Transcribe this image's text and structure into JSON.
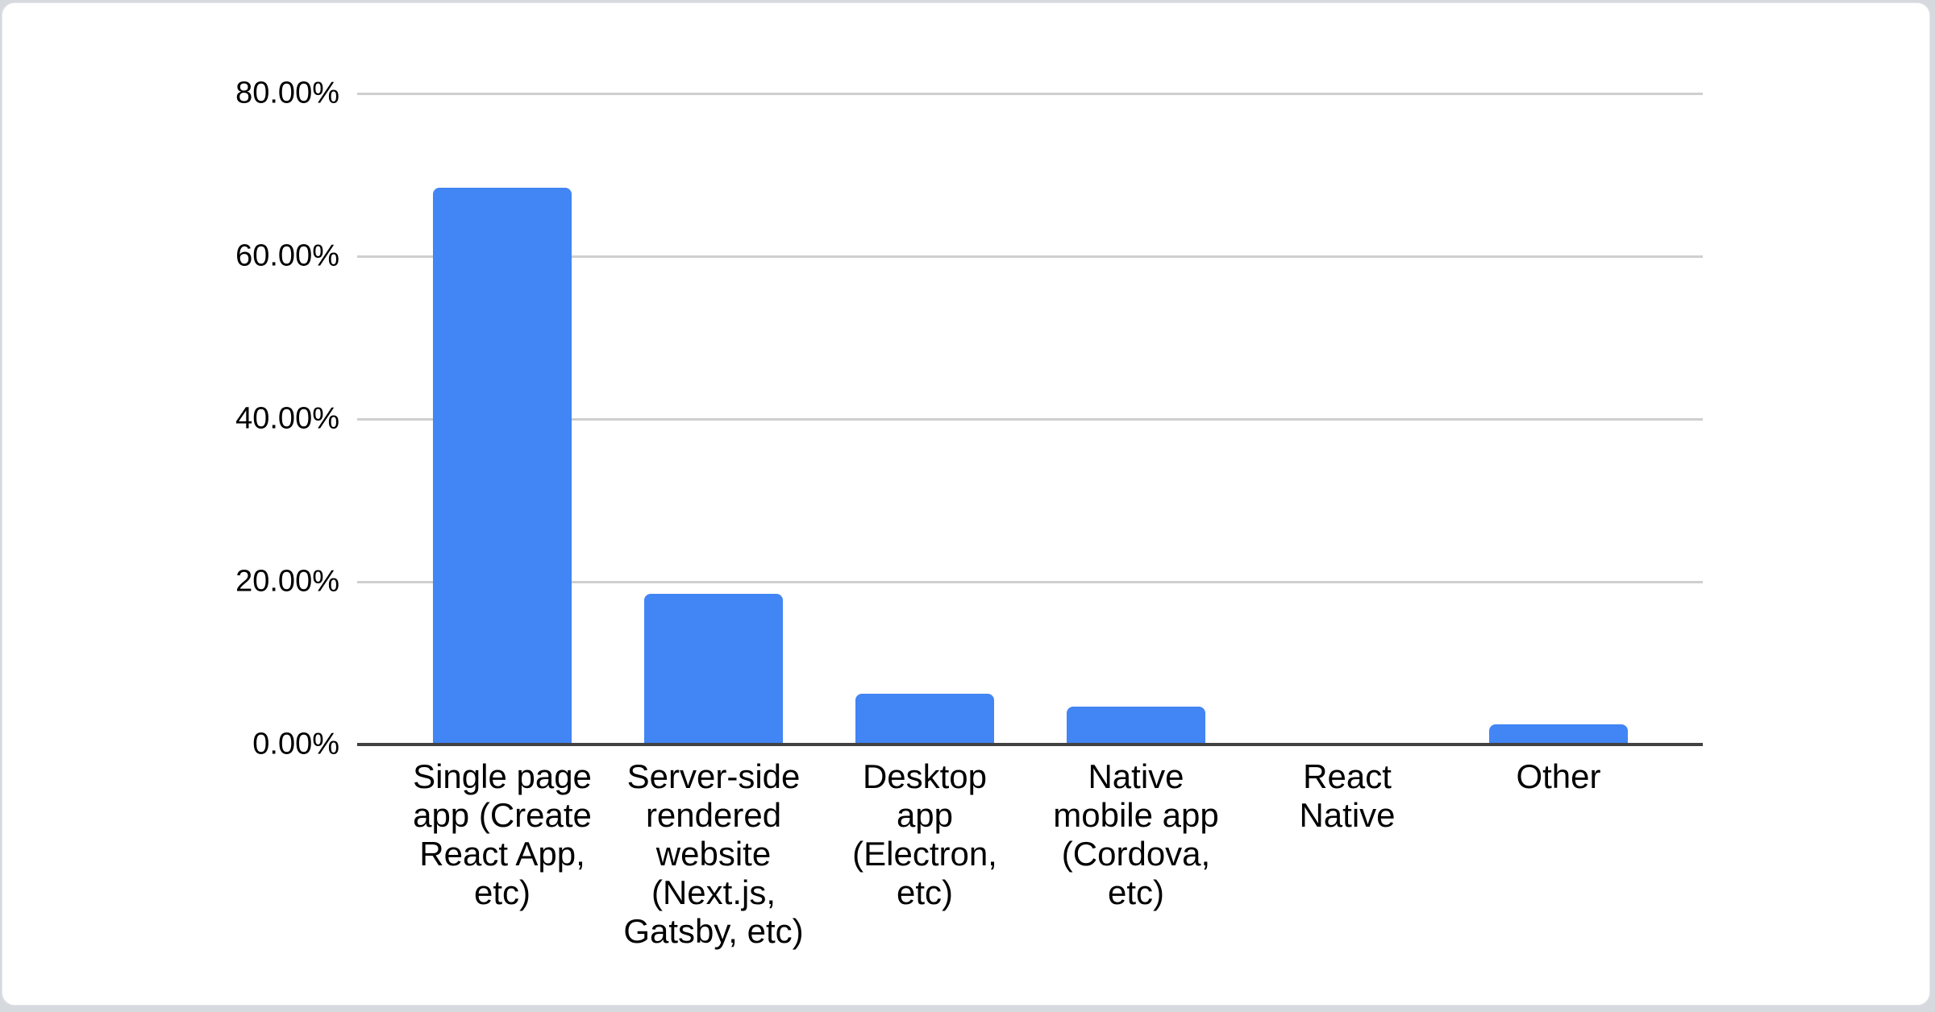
{
  "page": {
    "background_color": "#d6d9dd",
    "card_background_color": "#ffffff",
    "card_border_color": "#e4e7ea"
  },
  "chart_data": {
    "type": "bar",
    "title": "",
    "categories": [
      "Single page app (Create React App, etc)",
      "Server-side rendered website (Next.js, Gatsby, etc)",
      "Desktop app (Electron, etc)",
      "Native mobile app (Cordova, etc)",
      "React Native",
      "Other"
    ],
    "values": [
      68.4,
      18.5,
      6.2,
      4.7,
      0,
      2.5
    ],
    "value_unit": "%",
    "x_tick_labels_multiline": [
      "Single page\napp (Create\nReact App,\netc)",
      "Server-side\nrendered\nwebsite\n(Next.js,\nGatsby, etc)",
      "Desktop\napp\n(Electron,\netc)",
      "Native\nmobile app\n(Cordova,\netc)",
      "React\nNative",
      "Other"
    ],
    "y_ticks": [
      {
        "label": "80.00%",
        "value": 80
      },
      {
        "label": "60.00%",
        "value": 60
      },
      {
        "label": "40.00%",
        "value": 40
      },
      {
        "label": "20.00%",
        "value": 20
      },
      {
        "label": "0.00%",
        "value": 0
      }
    ],
    "ylim": [
      0,
      80
    ],
    "grid": true,
    "legend_position": "none",
    "bar_color": "#4285f4",
    "axis_line_color": "#424242",
    "gridline_color": "#cfcfcf",
    "label_color": "#000000"
  }
}
